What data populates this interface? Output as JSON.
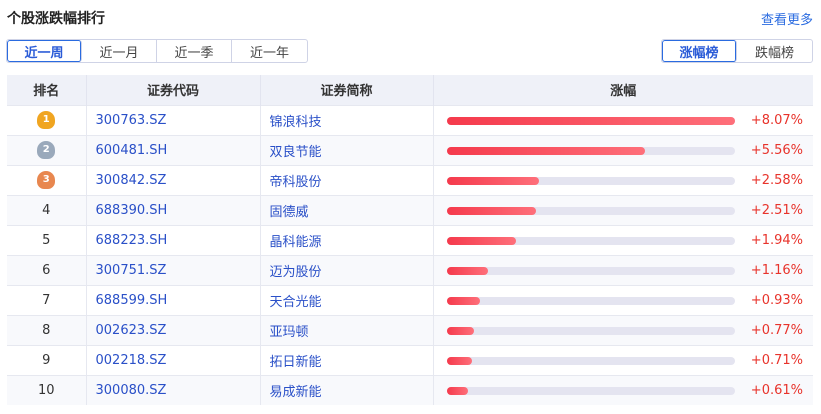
{
  "header": {
    "title": "个股涨跌幅排行",
    "more": "查看更多"
  },
  "periods": [
    "近一周",
    "近一月",
    "近一季",
    "近一年"
  ],
  "active_period": 0,
  "boards": [
    "涨幅榜",
    "跌幅榜"
  ],
  "active_board": 0,
  "table": {
    "columns": [
      "排名",
      "证券代码",
      "证券简称",
      "涨幅"
    ],
    "max_change": 8.07,
    "medal_colors": [
      "#f0a521",
      "#9aa9bb",
      "#e8874f"
    ],
    "rows": [
      {
        "rank": "1",
        "code": "300763.SZ",
        "name": "锦浪科技",
        "change": "+8.07%",
        "value": 8.07
      },
      {
        "rank": "2",
        "code": "600481.SH",
        "name": "双良节能",
        "change": "+5.56%",
        "value": 5.56
      },
      {
        "rank": "3",
        "code": "300842.SZ",
        "name": "帝科股份",
        "change": "+2.58%",
        "value": 2.58
      },
      {
        "rank": "4",
        "code": "688390.SH",
        "name": "固德威",
        "change": "+2.51%",
        "value": 2.51
      },
      {
        "rank": "5",
        "code": "688223.SH",
        "name": "晶科能源",
        "change": "+1.94%",
        "value": 1.94
      },
      {
        "rank": "6",
        "code": "300751.SZ",
        "name": "迈为股份",
        "change": "+1.16%",
        "value": 1.16
      },
      {
        "rank": "7",
        "code": "688599.SH",
        "name": "天合光能",
        "change": "+0.93%",
        "value": 0.93
      },
      {
        "rank": "8",
        "code": "002623.SZ",
        "name": "亚玛顿",
        "change": "+0.77%",
        "value": 0.77
      },
      {
        "rank": "9",
        "code": "002218.SZ",
        "name": "拓日新能",
        "change": "+0.71%",
        "value": 0.71
      },
      {
        "rank": "10",
        "code": "300080.SZ",
        "name": "易成新能",
        "change": "+0.61%",
        "value": 0.61
      }
    ]
  }
}
